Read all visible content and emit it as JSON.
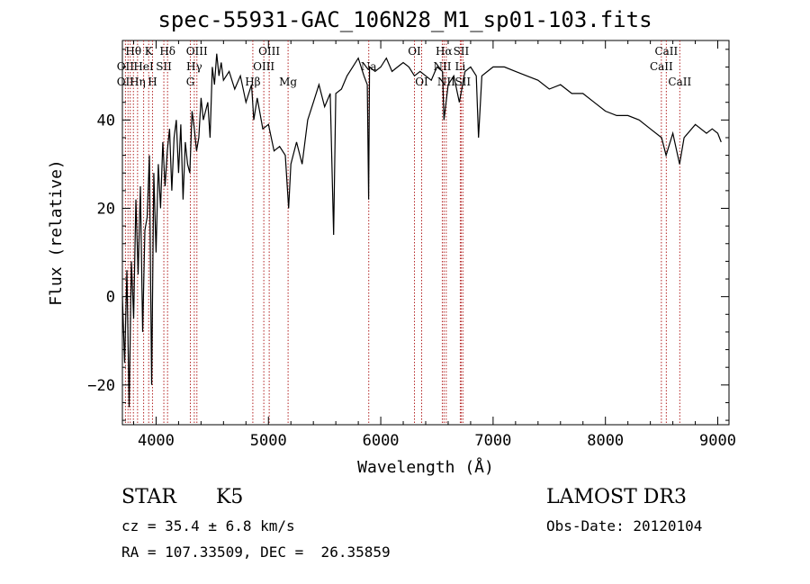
{
  "chart_data": {
    "type": "line",
    "title": "spec-55931-GAC_106N28_M1_sp01-103.fits",
    "xlabel": "Wavelength (Å)",
    "ylabel": "Flux (relative)",
    "xlim": [
      3700,
      9100
    ],
    "ylim": [
      -29,
      58
    ],
    "xticks": [
      4000,
      5000,
      6000,
      7000,
      8000,
      9000
    ],
    "yticks": [
      -20,
      0,
      20,
      40
    ],
    "series": [
      {
        "name": "flux",
        "x": [
          3700,
          3720,
          3740,
          3760,
          3780,
          3800,
          3820,
          3840,
          3860,
          3880,
          3900,
          3920,
          3940,
          3960,
          3980,
          4000,
          4020,
          4040,
          4060,
          4080,
          4100,
          4120,
          4140,
          4160,
          4180,
          4200,
          4220,
          4240,
          4260,
          4280,
          4300,
          4320,
          4340,
          4360,
          4380,
          4400,
          4420,
          4440,
          4460,
          4480,
          4500,
          4520,
          4540,
          4560,
          4580,
          4600,
          4650,
          4700,
          4750,
          4800,
          4850,
          4870,
          4900,
          4950,
          5000,
          5050,
          5100,
          5150,
          5180,
          5200,
          5250,
          5300,
          5350,
          5400,
          5450,
          5500,
          5550,
          5580,
          5600,
          5650,
          5700,
          5750,
          5800,
          5850,
          5880,
          5892,
          5900,
          5950,
          6000,
          6050,
          6100,
          6150,
          6200,
          6250,
          6300,
          6350,
          6400,
          6450,
          6500,
          6550,
          6563,
          6600,
          6650,
          6700,
          6750,
          6800,
          6850,
          6870,
          6900,
          6950,
          7000,
          7100,
          7200,
          7300,
          7400,
          7500,
          7600,
          7700,
          7800,
          7900,
          8000,
          8100,
          8200,
          8300,
          8400,
          8500,
          8540,
          8600,
          8660,
          8700,
          8800,
          8900,
          8950,
          9000,
          9030
        ],
        "values": [
          0,
          -15,
          6,
          -25,
          8,
          -5,
          22,
          5,
          25,
          -8,
          15,
          18,
          32,
          -20,
          28,
          10,
          30,
          20,
          35,
          25,
          33,
          38,
          24,
          36,
          40,
          28,
          39,
          22,
          35,
          30,
          28,
          42,
          38,
          33,
          36,
          45,
          40,
          42,
          44,
          36,
          52,
          48,
          55,
          50,
          53,
          49,
          51,
          47,
          50,
          44,
          48,
          40,
          45,
          38,
          39,
          33,
          34,
          32,
          20,
          30,
          35,
          30,
          40,
          44,
          48,
          43,
          46,
          14,
          46,
          47,
          50,
          52,
          54,
          50,
          48,
          22,
          52,
          51,
          52,
          54,
          51,
          52,
          53,
          52,
          50,
          51,
          50,
          49,
          52,
          51,
          40,
          48,
          50,
          44,
          51,
          52,
          50,
          36,
          50,
          51,
          52,
          52,
          51,
          50,
          49,
          47,
          48,
          46,
          46,
          44,
          42,
          41,
          41,
          40,
          38,
          36,
          32,
          37,
          30,
          36,
          39,
          37,
          38,
          37,
          35
        ]
      }
    ],
    "annotations": [
      {
        "label": "Hθ",
        "x": 3798,
        "row": 1
      },
      {
        "label": "K",
        "x": 3934,
        "row": 1
      },
      {
        "label": "Hδ",
        "x": 4102,
        "row": 1
      },
      {
        "label": "OIII",
        "x": 4363,
        "row": 1
      },
      {
        "label": "OIII",
        "x": 5007,
        "row": 1
      },
      {
        "label": "OI",
        "x": 6300,
        "row": 1
      },
      {
        "label": "Hα",
        "x": 6563,
        "row": 1
      },
      {
        "label": "SII",
        "x": 6716,
        "row": 1
      },
      {
        "label": "CaII",
        "x": 8542,
        "row": 1
      },
      {
        "label": "OII",
        "x": 3727,
        "row": 2
      },
      {
        "label": "HeI",
        "x": 3889,
        "row": 2
      },
      {
        "label": "SII",
        "x": 4069,
        "row": 2
      },
      {
        "label": "Hγ",
        "x": 4340,
        "row": 2
      },
      {
        "label": "OIII",
        "x": 4959,
        "row": 2
      },
      {
        "label": "Na",
        "x": 5893,
        "row": 2
      },
      {
        "label": "NII",
        "x": 6548,
        "row": 2
      },
      {
        "label": "Li",
        "x": 6708,
        "row": 2
      },
      {
        "label": "CaII",
        "x": 8498,
        "row": 2
      },
      {
        "label": "OII",
        "x": 3727,
        "row": 3
      },
      {
        "label": "Hη",
        "x": 3835,
        "row": 3
      },
      {
        "label": "H",
        "x": 3968,
        "row": 3
      },
      {
        "label": "G",
        "x": 4305,
        "row": 3
      },
      {
        "label": "Hβ",
        "x": 4861,
        "row": 3
      },
      {
        "label": "Mg",
        "x": 5175,
        "row": 3
      },
      {
        "label": "OI",
        "x": 6364,
        "row": 3
      },
      {
        "label": "NII",
        "x": 6583,
        "row": 3
      },
      {
        "label": "SII",
        "x": 6731,
        "row": 3
      },
      {
        "label": "CaII",
        "x": 8662,
        "row": 3
      }
    ],
    "line_positions": [
      3727,
      3750,
      3770,
      3798,
      3835,
      3889,
      3934,
      3968,
      4069,
      4102,
      4305,
      4340,
      4363,
      4861,
      4959,
      5007,
      5175,
      5893,
      6300,
      6364,
      6548,
      6563,
      6583,
      6708,
      6716,
      6731,
      8498,
      8542,
      8662
    ],
    "colors": {
      "line": "#000000",
      "markers": "#b22222"
    }
  },
  "info": {
    "object_type": "STAR",
    "spectral_class": "K5",
    "survey": "LAMOST DR3",
    "cz": "cz = 35.4 ± 6.8 km/s",
    "obs_date": "Obs-Date: 20120104",
    "coords": "RA = 107.33509, DEC =  26.35859"
  }
}
